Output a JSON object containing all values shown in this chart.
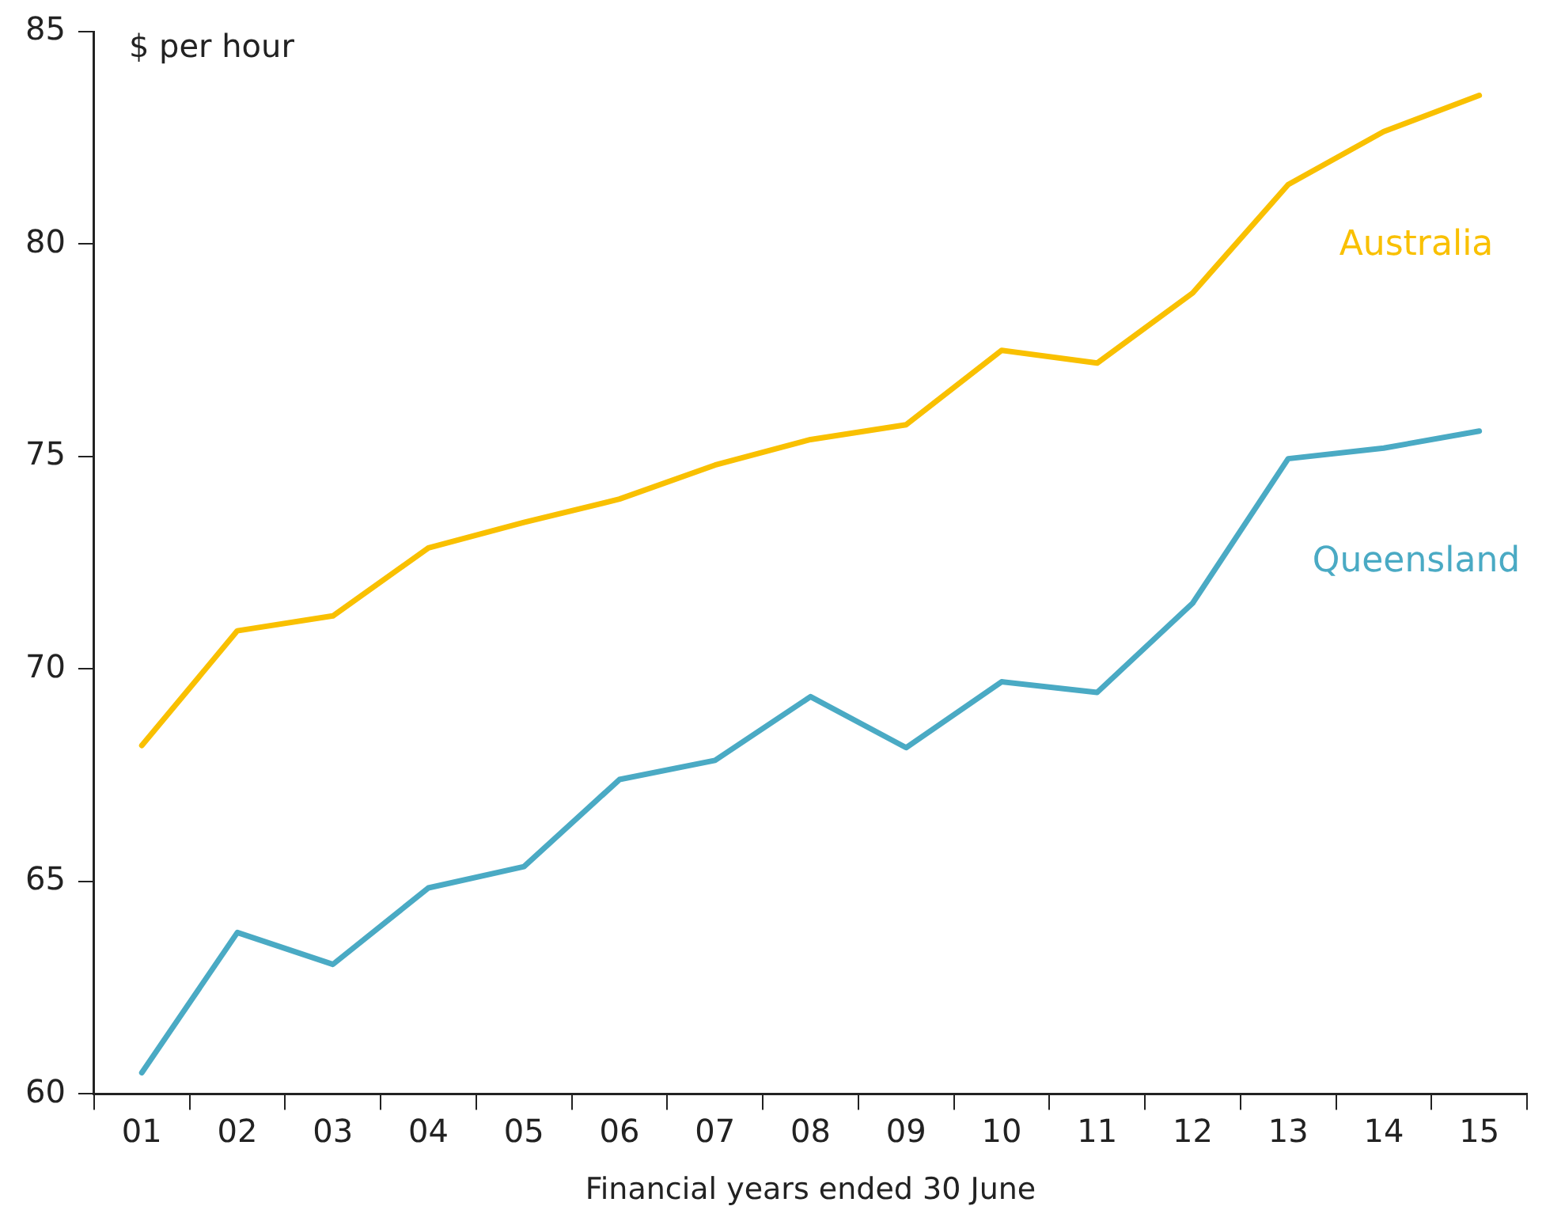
{
  "chart_data": {
    "type": "line",
    "ylabel": "$ per hour",
    "xlabel": "Financial years ended 30 June",
    "categories": [
      "01",
      "02",
      "03",
      "04",
      "05",
      "06",
      "07",
      "08",
      "09",
      "10",
      "11",
      "12",
      "13",
      "14",
      "15"
    ],
    "series": [
      {
        "name": "Australia",
        "color": "#f9c000",
        "values": [
          68.2,
          70.9,
          71.25,
          72.85,
          73.45,
          74.0,
          74.8,
          75.4,
          75.75,
          77.5,
          77.2,
          78.85,
          81.4,
          82.65,
          83.5
        ]
      },
      {
        "name": "Queensland",
        "color": "#4aaac4",
        "values": [
          60.5,
          63.8,
          63.05,
          64.85,
          65.35,
          67.4,
          67.85,
          69.35,
          68.15,
          69.7,
          69.45,
          71.55,
          74.95,
          75.2,
          75.6
        ]
      }
    ],
    "ylim": [
      60,
      85
    ],
    "yticks": [
      60,
      65,
      70,
      75,
      80,
      85
    ],
    "legend": false,
    "grid": false
  }
}
